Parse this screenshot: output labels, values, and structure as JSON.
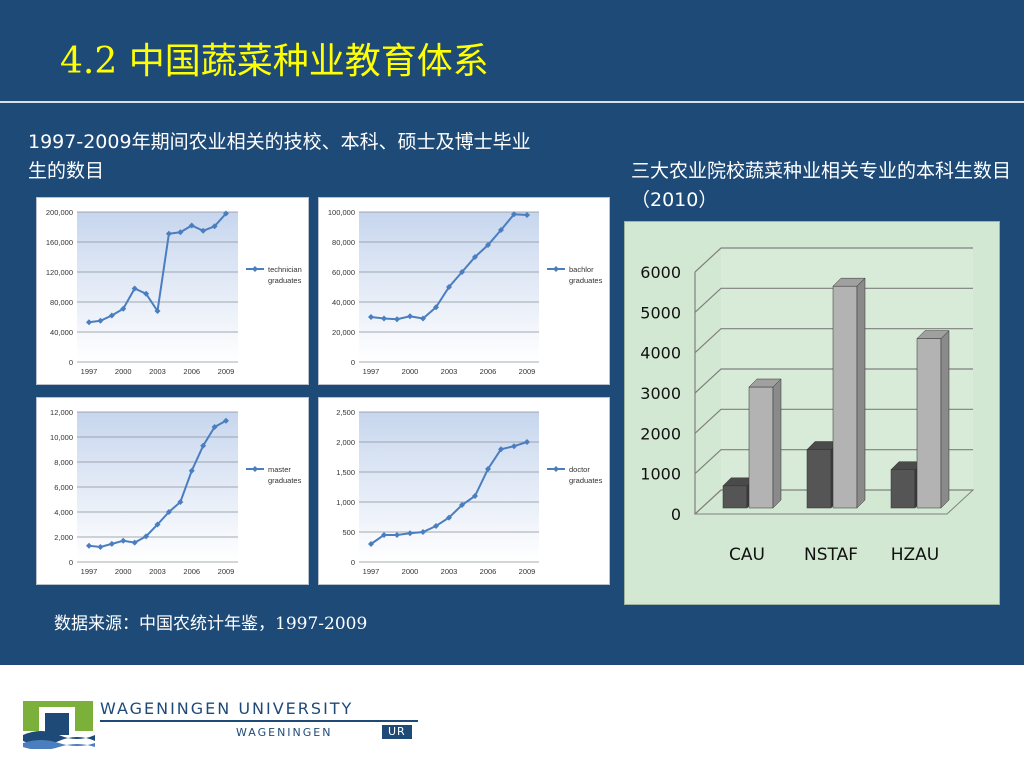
{
  "slide": {
    "title": "4.2 中国蔬菜种业教育体系",
    "left_caption": "1997-2009年期间农业相关的技校、本科、硕士及博士毕业生的数目",
    "right_caption": "三大农业院校蔬菜种业相关专业的本科生数目（2010）",
    "source": "数据来源：中国农统计年鉴，1997-2009"
  },
  "colors": {
    "slide_bg": "#1e4a78",
    "title": "#ffff00",
    "line": "#4a7ebf",
    "plot_top": "#c7d6ee",
    "plot_bottom": "#ffffff",
    "bar_front_light": "#b3b3b3",
    "bar_front_dark": "#555555",
    "bar_panel_bg": "#d3e8d3"
  },
  "footer": {
    "brand_line1": "WAGENINGEN UNIVERSITY",
    "brand_line2": "WAGENINGEN",
    "brand_ur": "UR"
  },
  "chart_data": [
    {
      "type": "line",
      "x": [
        1997,
        1998,
        1999,
        2000,
        2001,
        2002,
        2003,
        2004,
        2005,
        2006,
        2007,
        2008,
        2009
      ],
      "x_ticks": [
        "1997",
        "2000",
        "2003",
        "2006",
        "2009"
      ],
      "y_ticks": [
        "0",
        "40,000",
        "80,000",
        "120,000",
        "160,000",
        "200,000"
      ],
      "ylim": [
        0,
        200000
      ],
      "series": [
        {
          "name": "technician graduates",
          "legend_lines": [
            "technician",
            "graduates"
          ],
          "values": [
            53000,
            55000,
            62000,
            71000,
            98000,
            91000,
            68000,
            171000,
            173000,
            182000,
            175000,
            181000,
            198000
          ]
        }
      ]
    },
    {
      "type": "line",
      "x": [
        1997,
        1998,
        1999,
        2000,
        2001,
        2002,
        2003,
        2004,
        2005,
        2006,
        2007,
        2008,
        2009
      ],
      "x_ticks": [
        "1997",
        "2000",
        "2003",
        "2006",
        "2009"
      ],
      "y_ticks": [
        "0",
        "20,000",
        "40,000",
        "60,000",
        "80,000",
        "100,000"
      ],
      "ylim": [
        0,
        100000
      ],
      "series": [
        {
          "name": "bachlor graduates",
          "legend_lines": [
            "bachlor",
            "graduates"
          ],
          "values": [
            30000,
            29000,
            28500,
            30500,
            29000,
            36500,
            50000,
            60000,
            70000,
            78000,
            88000,
            98500,
            98000
          ]
        }
      ]
    },
    {
      "type": "line",
      "x": [
        1997,
        1998,
        1999,
        2000,
        2001,
        2002,
        2003,
        2004,
        2005,
        2006,
        2007,
        2008,
        2009
      ],
      "x_ticks": [
        "1997",
        "2000",
        "2003",
        "2006",
        "2009"
      ],
      "y_ticks": [
        "0",
        "2,000",
        "4,000",
        "6,000",
        "8,000",
        "10,000",
        "12,000"
      ],
      "ylim": [
        0,
        12000
      ],
      "series": [
        {
          "name": "master graduates",
          "legend_lines": [
            "master",
            "graduates"
          ],
          "values": [
            1300,
            1200,
            1450,
            1700,
            1550,
            2050,
            3000,
            4000,
            4800,
            7300,
            9300,
            10800,
            11300
          ]
        }
      ]
    },
    {
      "type": "line",
      "x": [
        1997,
        1998,
        1999,
        2000,
        2001,
        2002,
        2003,
        2004,
        2005,
        2006,
        2007,
        2008,
        2009
      ],
      "x_ticks": [
        "1997",
        "2000",
        "2003",
        "2006",
        "2009"
      ],
      "y_ticks": [
        "0",
        "500",
        "1,000",
        "1,500",
        "2,000",
        "2,500"
      ],
      "ylim": [
        0,
        2500
      ],
      "series": [
        {
          "name": "doctor graduates",
          "legend_lines": [
            "doctor",
            "graduates"
          ],
          "values": [
            300,
            450,
            450,
            480,
            500,
            600,
            740,
            950,
            1100,
            1550,
            1880,
            1930,
            2000
          ]
        }
      ]
    },
    {
      "type": "bar",
      "categories": [
        "CAU",
        "NSTAF",
        "HZAU"
      ],
      "y_ticks": [
        "0",
        "1000",
        "2000",
        "3000",
        "4000",
        "5000",
        "6000"
      ],
      "ylim": [
        0,
        6000
      ],
      "series": [
        {
          "values": [
            550,
            1450,
            950
          ]
        },
        {
          "values": [
            3000,
            5500,
            4200
          ]
        }
      ]
    }
  ]
}
